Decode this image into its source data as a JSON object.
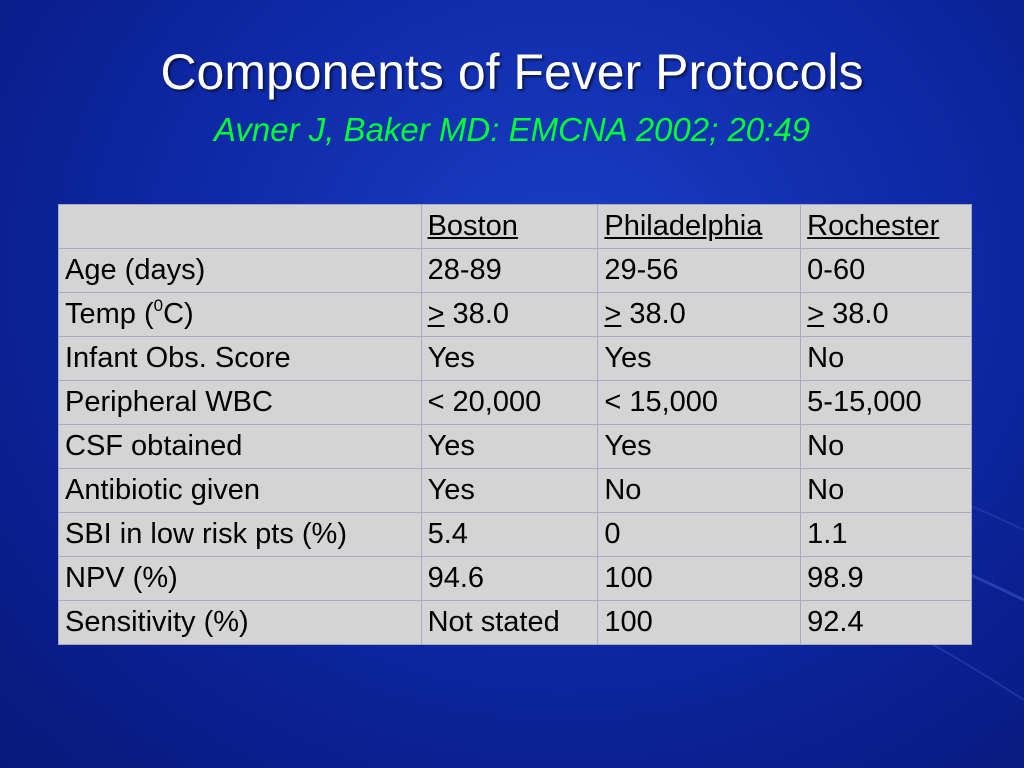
{
  "slide": {
    "title": "Components of Fever Protocols",
    "subtitle": "Avner J, Baker MD: EMCNA 2002; 20:49"
  },
  "table": {
    "headers": [
      "",
      "Boston",
      "Philadelphia",
      "Rochester"
    ],
    "rows": [
      {
        "label": "Age (days)",
        "boston": "28-89",
        "philadelphia": "29-56",
        "rochester": "0-60"
      },
      {
        "label_pre": "Temp (",
        "label_sup": "0",
        "label_post": "C)",
        "boston_op": ">",
        "boston": " 38.0",
        "philadelphia_op": ">",
        "philadelphia": " 38.0",
        "rochester_op": ">",
        "rochester": " 38.0"
      },
      {
        "label": "Infant Obs. Score",
        "boston": "Yes",
        "philadelphia": "Yes",
        "rochester": "No"
      },
      {
        "label": "Peripheral WBC",
        "boston": "< 20,000",
        "philadelphia": "< 15,000",
        "rochester": "5-15,000"
      },
      {
        "label": "CSF obtained",
        "boston": "Yes",
        "philadelphia": "Yes",
        "rochester": "No"
      },
      {
        "label": "Antibiotic given",
        "boston": "Yes",
        "philadelphia": "No",
        "rochester": "No"
      },
      {
        "label": "SBI in low risk pts (%)",
        "boston": "5.4",
        "philadelphia": "0",
        "rochester": "1.1"
      },
      {
        "label": "NPV (%)",
        "boston": "94.6",
        "philadelphia": "100",
        "rochester": "98.9"
      },
      {
        "label": "Sensitivity (%)",
        "boston": "Not stated",
        "philadelphia": "100",
        "rochester": "92.4"
      }
    ]
  },
  "colors": {
    "background": "#0f2aa8",
    "title": "#ffffff",
    "subtitle": "#00ff33",
    "table_fill": "#d4d4d4"
  }
}
